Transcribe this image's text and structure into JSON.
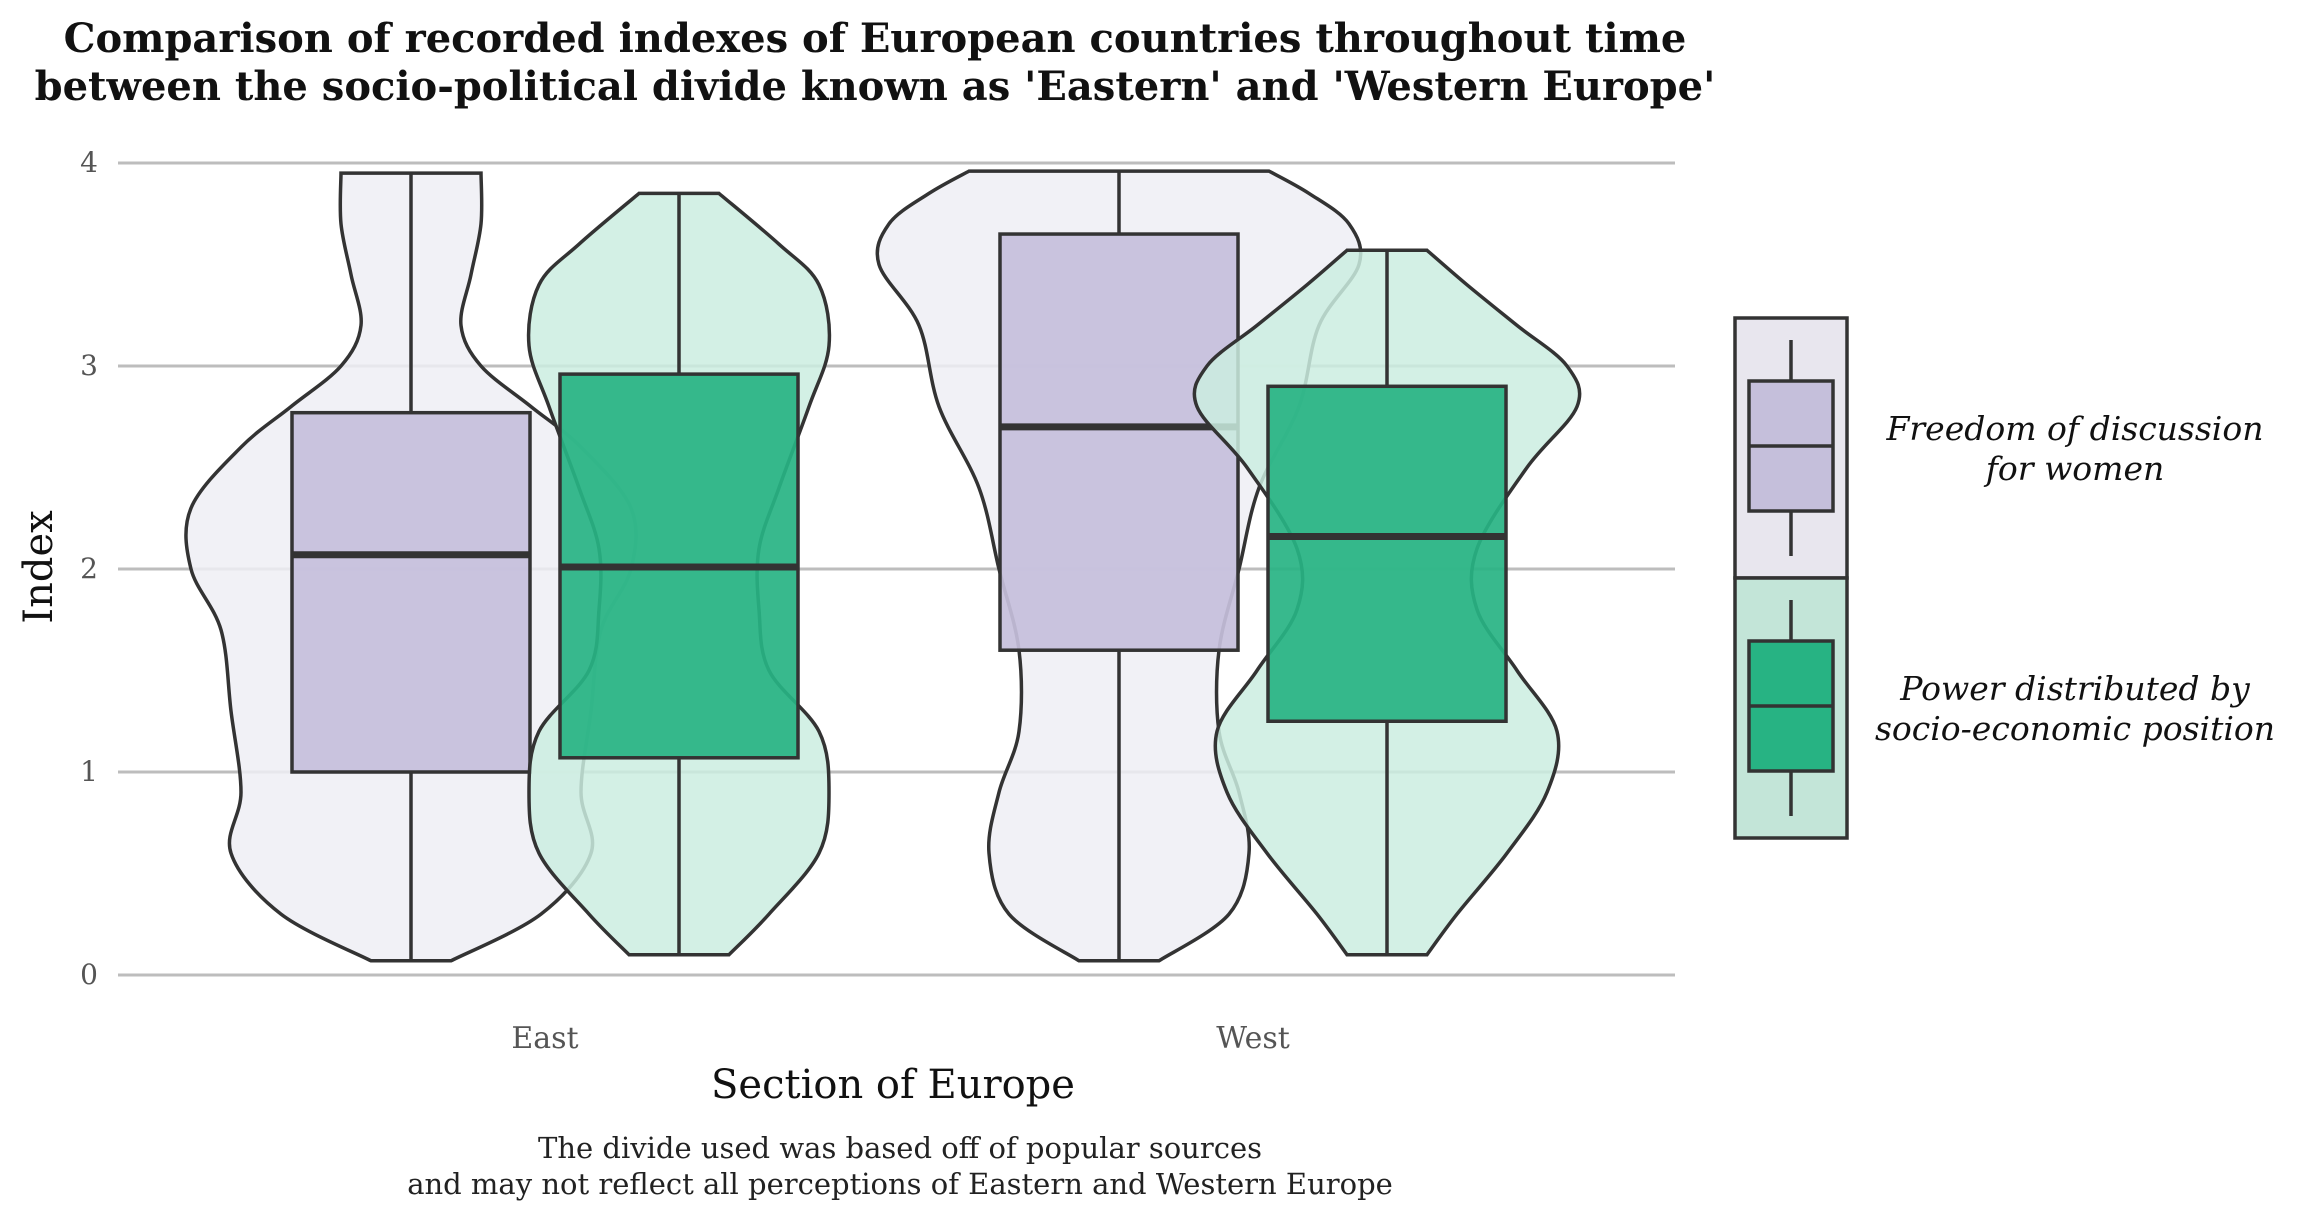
{
  "chart_data": {
    "type": "violin+box",
    "title": [
      "Comparison of recorded indexes of European countries throughout time",
      "between the socio-political divide known as 'Eastern' and 'Western Europe'"
    ],
    "xlabel": "Section of Europe",
    "ylabel": "Index",
    "caption": [
      "The divide used was based off of popular sources",
      "and may not reflect all perceptions of Eastern and Western Europe"
    ],
    "ylim": [
      0,
      4
    ],
    "y_ticks": [
      "0",
      "1",
      "2",
      "3",
      "4"
    ],
    "categories": [
      "East",
      "West"
    ],
    "grid": "horizontal",
    "legend_position": "right",
    "series": [
      {
        "name": "Freedom of discussion for women",
        "legend_lines": [
          "Freedom of discussion",
          "for women"
        ],
        "color": "#c5bfdb",
        "violin_color": "#efeef5",
        "groups": [
          {
            "category": "East",
            "box": {
              "min": 0.07,
              "q1": 1.0,
              "median": 2.07,
              "q3": 2.77,
              "max": 3.95
            },
            "violin": [
              [
                0.07,
                0.04
              ],
              [
                0.3,
                0.13
              ],
              [
                0.6,
                0.18
              ],
              [
                0.9,
                0.17
              ],
              [
                1.3,
                0.18
              ],
              [
                1.7,
                0.19
              ],
              [
                2.0,
                0.22
              ],
              [
                2.3,
                0.22
              ],
              [
                2.6,
                0.17
              ],
              [
                2.8,
                0.12
              ],
              [
                3.0,
                0.07
              ],
              [
                3.2,
                0.05
              ],
              [
                3.45,
                0.06
              ],
              [
                3.7,
                0.07
              ],
              [
                3.95,
                0.07
              ]
            ]
          },
          {
            "category": "West",
            "box": {
              "min": 0.07,
              "q1": 1.6,
              "median": 2.7,
              "q3": 3.65,
              "max": 3.96
            },
            "violin": [
              [
                0.07,
                0.04
              ],
              [
                0.3,
                0.11
              ],
              [
                0.6,
                0.13
              ],
              [
                0.9,
                0.12
              ],
              [
                1.2,
                0.1
              ],
              [
                1.6,
                0.1
              ],
              [
                2.0,
                0.12
              ],
              [
                2.4,
                0.14
              ],
              [
                2.8,
                0.18
              ],
              [
                3.2,
                0.2
              ],
              [
                3.5,
                0.24
              ],
              [
                3.7,
                0.23
              ],
              [
                3.85,
                0.19
              ],
              [
                3.96,
                0.15
              ]
            ]
          }
        ]
      },
      {
        "name": "Power distributed by socio-economic position",
        "legend_lines": [
          "Power distributed by",
          "socio-economic position"
        ],
        "color": "#27b383",
        "violin_color": "#cbede1",
        "groups": [
          {
            "category": "East",
            "box": {
              "min": 0.1,
              "q1": 1.07,
              "median": 2.01,
              "q3": 2.96,
              "max": 3.85
            },
            "violin": [
              [
                0.1,
                0.05
              ],
              [
                0.3,
                0.09
              ],
              [
                0.6,
                0.14
              ],
              [
                0.9,
                0.15
              ],
              [
                1.2,
                0.14
              ],
              [
                1.5,
                0.09
              ],
              [
                1.8,
                0.08
              ],
              [
                2.1,
                0.08
              ],
              [
                2.4,
                0.1
              ],
              [
                2.8,
                0.13
              ],
              [
                3.1,
                0.15
              ],
              [
                3.4,
                0.14
              ],
              [
                3.6,
                0.1
              ],
              [
                3.85,
                0.04
              ]
            ]
          },
          {
            "category": "West",
            "box": {
              "min": 0.1,
              "q1": 1.25,
              "median": 2.16,
              "q3": 2.9,
              "max": 3.57
            },
            "violin": [
              [
                0.1,
                0.04
              ],
              [
                0.3,
                0.07
              ],
              [
                0.6,
                0.12
              ],
              [
                0.9,
                0.16
              ],
              [
                1.2,
                0.17
              ],
              [
                1.5,
                0.13
              ],
              [
                1.8,
                0.09
              ],
              [
                2.1,
                0.09
              ],
              [
                2.5,
                0.14
              ],
              [
                2.8,
                0.19
              ],
              [
                3.0,
                0.18
              ],
              [
                3.2,
                0.13
              ],
              [
                3.4,
                0.08
              ],
              [
                3.57,
                0.04
              ]
            ]
          }
        ]
      }
    ]
  }
}
